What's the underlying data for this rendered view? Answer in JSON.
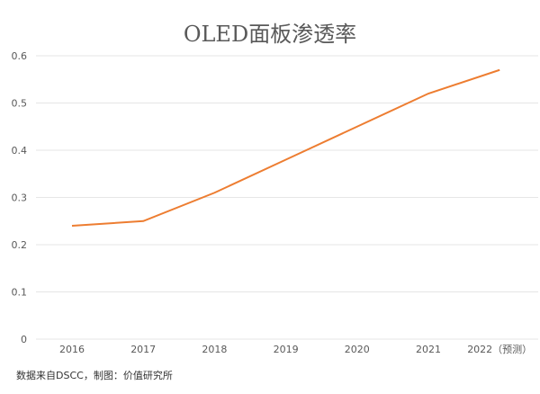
{
  "chart_data": {
    "type": "line",
    "title": "OLED面板渗透率",
    "categories": [
      "2016",
      "2017",
      "2018",
      "2019",
      "2020",
      "2021",
      "2022（预测）"
    ],
    "series": [
      {
        "name": "OLED面板渗透率",
        "color": "#ED7D31",
        "values": [
          0.24,
          0.25,
          0.31,
          0.38,
          0.45,
          0.52,
          0.57
        ]
      }
    ],
    "ylim": [
      0,
      0.6
    ],
    "yticks": [
      "0",
      "0.1",
      "0.2",
      "0.3",
      "0.4",
      "0.5",
      "0.6"
    ],
    "xlabel": "",
    "ylabel": "",
    "grid": true,
    "legend": "none"
  },
  "source": "数据来自DSCC，制图：价值研究所"
}
